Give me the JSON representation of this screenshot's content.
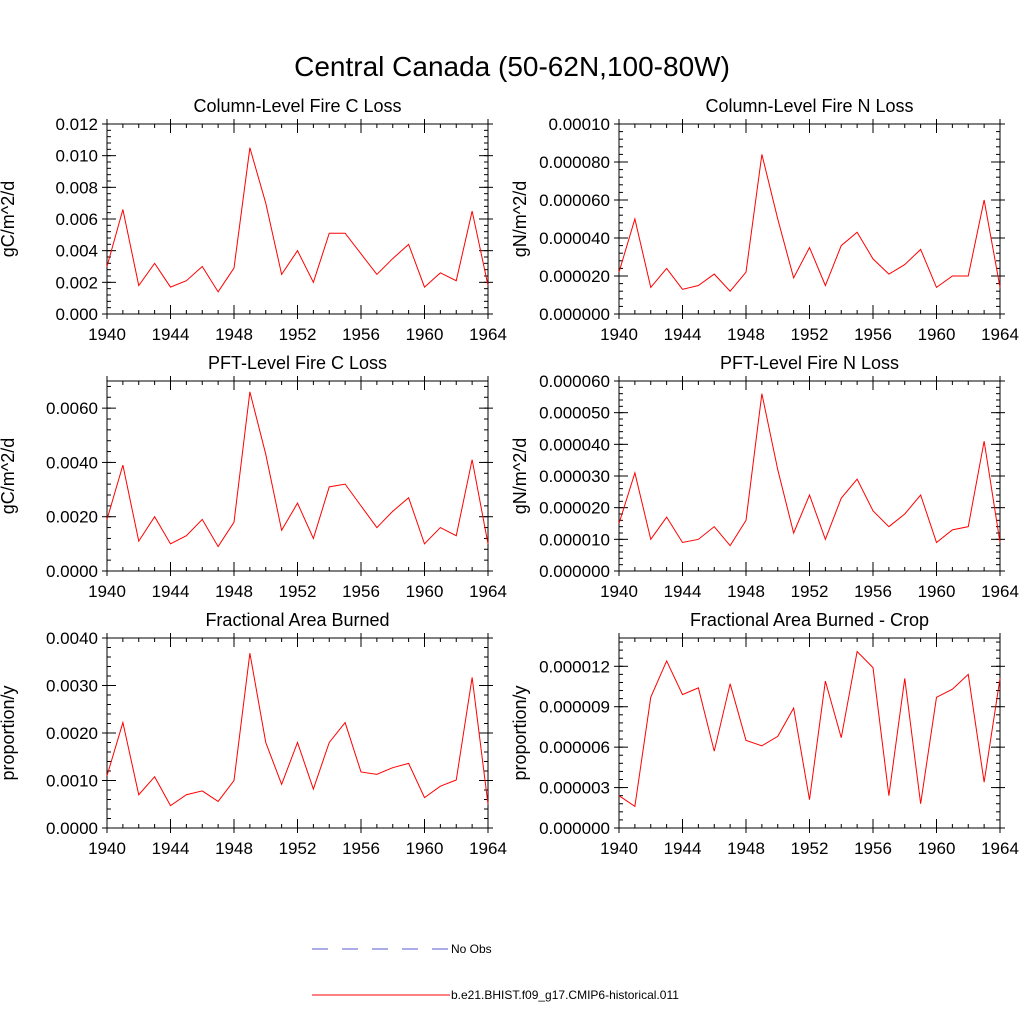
{
  "figure": {
    "title": "Central Canada (50-62N,100-80W)"
  },
  "legend": [
    {
      "label": "No Obs",
      "color": "#5a5ad2",
      "dash": "dashed"
    },
    {
      "label": "b.e21.BHIST.f09_g17.CMIP6-historical.011",
      "color": "#ff0000",
      "dash": "solid"
    }
  ],
  "chart_data": [
    {
      "type": "line",
      "title": "Column-Level Fire C Loss",
      "xlabel": "",
      "ylabel": "gC/m^2/d",
      "xlim": [
        1940,
        1964
      ],
      "ylim": [
        0,
        0.012
      ],
      "xticks": [
        1940,
        1944,
        1948,
        1952,
        1956,
        1960,
        1964
      ],
      "yticks": [
        0,
        0.002,
        0.004,
        0.006,
        0.008,
        0.01,
        0.012
      ],
      "yticklabels": [
        "0.000",
        "0.002",
        "0.004",
        "0.006",
        "0.008",
        "0.010",
        "0.012"
      ],
      "x": [
        1940,
        1941,
        1942,
        1943,
        1944,
        1945,
        1946,
        1947,
        1948,
        1949,
        1950,
        1951,
        1952,
        1953,
        1954,
        1955,
        1956,
        1957,
        1958,
        1959,
        1960,
        1961,
        1962,
        1963,
        1964
      ],
      "series": [
        {
          "name": "b.e21.BHIST.f09_g17.CMIP6-historical.011",
          "color": "#ff0000",
          "values": [
            0.003,
            0.0066,
            0.0018,
            0.0032,
            0.0017,
            0.0021,
            0.003,
            0.0014,
            0.0029,
            0.0105,
            0.007,
            0.0025,
            0.004,
            0.002,
            0.0051,
            0.0051,
            0.0038,
            0.0025,
            0.0035,
            0.0044,
            0.0017,
            0.0026,
            0.0021,
            0.0065,
            0.0018
          ]
        }
      ]
    },
    {
      "type": "line",
      "title": "Column-Level Fire N Loss",
      "xlabel": "",
      "ylabel": "gN/m^2/d",
      "xlim": [
        1940,
        1964
      ],
      "ylim": [
        0,
        0.0001
      ],
      "xticks": [
        1940,
        1944,
        1948,
        1952,
        1956,
        1960,
        1964
      ],
      "yticks": [
        0,
        2e-05,
        4e-05,
        6e-05,
        8e-05,
        0.0001
      ],
      "yticklabels": [
        "0.000000",
        "0.000020",
        "0.000040",
        "0.000060",
        "0.000080",
        "0.00010"
      ],
      "x": [
        1940,
        1941,
        1942,
        1943,
        1944,
        1945,
        1946,
        1947,
        1948,
        1949,
        1950,
        1951,
        1952,
        1953,
        1954,
        1955,
        1956,
        1957,
        1958,
        1959,
        1960,
        1961,
        1962,
        1963,
        1964
      ],
      "series": [
        {
          "name": "b.e21.BHIST.f09_g17.CMIP6-historical.011",
          "color": "#ff0000",
          "values": [
            2.2e-05,
            5e-05,
            1.4e-05,
            2.4e-05,
            1.3e-05,
            1.5e-05,
            2.1e-05,
            1.2e-05,
            2.2e-05,
            8.4e-05,
            5e-05,
            1.9e-05,
            3.5e-05,
            1.5e-05,
            3.6e-05,
            4.3e-05,
            2.9e-05,
            2.1e-05,
            2.6e-05,
            3.4e-05,
            1.4e-05,
            2e-05,
            2e-05,
            6e-05,
            1.4e-05
          ]
        }
      ]
    },
    {
      "type": "line",
      "title": "PFT-Level Fire C Loss",
      "xlabel": "",
      "ylabel": "gC/m^2/d",
      "xlim": [
        1940,
        1964
      ],
      "ylim": [
        0,
        0.007
      ],
      "xticks": [
        1940,
        1944,
        1948,
        1952,
        1956,
        1960,
        1964
      ],
      "yticks": [
        0,
        0.002,
        0.004,
        0.006
      ],
      "yticklabels": [
        "0.0000",
        "0.0020",
        "0.0040",
        "0.0060"
      ],
      "x": [
        1940,
        1941,
        1942,
        1943,
        1944,
        1945,
        1946,
        1947,
        1948,
        1949,
        1950,
        1951,
        1952,
        1953,
        1954,
        1955,
        1956,
        1957,
        1958,
        1959,
        1960,
        1961,
        1962,
        1963,
        1964
      ],
      "series": [
        {
          "name": "b.e21.BHIST.f09_g17.CMIP6-historical.011",
          "color": "#ff0000",
          "values": [
            0.0019,
            0.0039,
            0.0011,
            0.002,
            0.001,
            0.0013,
            0.0019,
            0.0009,
            0.0018,
            0.0066,
            0.0043,
            0.0015,
            0.0025,
            0.0012,
            0.0031,
            0.0032,
            0.0024,
            0.0016,
            0.0022,
            0.0027,
            0.001,
            0.0016,
            0.0013,
            0.0041,
            0.001
          ]
        }
      ]
    },
    {
      "type": "line",
      "title": "PFT-Level Fire N Loss",
      "xlabel": "",
      "ylabel": "gN/m^2/d",
      "xlim": [
        1940,
        1964
      ],
      "ylim": [
        0,
        6e-05
      ],
      "xticks": [
        1940,
        1944,
        1948,
        1952,
        1956,
        1960,
        1964
      ],
      "yticks": [
        0,
        1e-05,
        2e-05,
        3e-05,
        4e-05,
        5e-05,
        6e-05
      ],
      "yticklabels": [
        "0.000000",
        "0.000010",
        "0.000020",
        "0.000030",
        "0.000040",
        "0.000050",
        "0.000060"
      ],
      "x": [
        1940,
        1941,
        1942,
        1943,
        1944,
        1945,
        1946,
        1947,
        1948,
        1949,
        1950,
        1951,
        1952,
        1953,
        1954,
        1955,
        1956,
        1957,
        1958,
        1959,
        1960,
        1961,
        1962,
        1963,
        1964
      ],
      "series": [
        {
          "name": "b.e21.BHIST.f09_g17.CMIP6-historical.011",
          "color": "#ff0000",
          "values": [
            1.5e-05,
            3.1e-05,
            1e-05,
            1.7e-05,
            9e-06,
            1e-05,
            1.4e-05,
            8e-06,
            1.6e-05,
            5.6e-05,
            3.2e-05,
            1.2e-05,
            2.4e-05,
            1e-05,
            2.3e-05,
            2.9e-05,
            1.9e-05,
            1.4e-05,
            1.8e-05,
            2.4e-05,
            9e-06,
            1.3e-05,
            1.4e-05,
            4.1e-05,
            9e-06
          ]
        }
      ]
    },
    {
      "type": "line",
      "title": "Fractional Area Burned",
      "xlabel": "",
      "ylabel": "proportion/y",
      "xlim": [
        1940,
        1964
      ],
      "ylim": [
        0,
        0.004
      ],
      "xticks": [
        1940,
        1944,
        1948,
        1952,
        1956,
        1960,
        1964
      ],
      "yticks": [
        0,
        0.001,
        0.002,
        0.003,
        0.004
      ],
      "yticklabels": [
        "0.0000",
        "0.0010",
        "0.0020",
        "0.0030",
        "0.0040"
      ],
      "x": [
        1940,
        1941,
        1942,
        1943,
        1944,
        1945,
        1946,
        1947,
        1948,
        1949,
        1950,
        1951,
        1952,
        1953,
        1954,
        1955,
        1956,
        1957,
        1958,
        1959,
        1960,
        1961,
        1962,
        1963,
        1964
      ],
      "series": [
        {
          "name": "b.e21.BHIST.f09_g17.CMIP6-historical.011",
          "color": "#ff0000",
          "values": [
            0.0011,
            0.00222,
            0.0007,
            0.00108,
            0.00047,
            0.0007,
            0.00078,
            0.00056,
            0.001,
            0.00368,
            0.0018,
            0.00092,
            0.0018,
            0.00082,
            0.0018,
            0.00222,
            0.00118,
            0.00113,
            0.00127,
            0.00136,
            0.00064,
            0.00088,
            0.00101,
            0.00317,
            0.0005
          ]
        }
      ]
    },
    {
      "type": "line",
      "title": "Fractional Area Burned - Crop",
      "xlabel": "",
      "ylabel": "proportion/y",
      "xlim": [
        1940,
        1964
      ],
      "ylim": [
        0,
        1.41e-05
      ],
      "xticks": [
        1940,
        1944,
        1948,
        1952,
        1956,
        1960,
        1964
      ],
      "yticks": [
        0,
        3e-06,
        6e-06,
        9e-06,
        1.2e-05
      ],
      "yticklabels": [
        "0.000000",
        "0.000003",
        "0.000006",
        "0.000009",
        "0.000012"
      ],
      "x": [
        1940,
        1941,
        1942,
        1943,
        1944,
        1945,
        1946,
        1947,
        1948,
        1949,
        1950,
        1951,
        1952,
        1953,
        1954,
        1955,
        1956,
        1957,
        1958,
        1959,
        1960,
        1961,
        1962,
        1963,
        1964
      ],
      "series": [
        {
          "name": "b.e21.BHIST.f09_g17.CMIP6-historical.011",
          "color": "#ff0000",
          "values": [
            2.4e-06,
            1.6e-06,
            9.7e-06,
            1.24e-05,
            9.9e-06,
            1.04e-05,
            5.7e-06,
            1.07e-05,
            6.5e-06,
            6.1e-06,
            6.8e-06,
            8.9e-06,
            2.1e-06,
            1.09e-05,
            6.7e-06,
            1.31e-05,
            1.19e-05,
            2.4e-06,
            1.11e-05,
            1.8e-06,
            9.7e-06,
            1.03e-05,
            1.14e-05,
            3.4e-06,
            1.11e-05
          ]
        }
      ]
    }
  ]
}
